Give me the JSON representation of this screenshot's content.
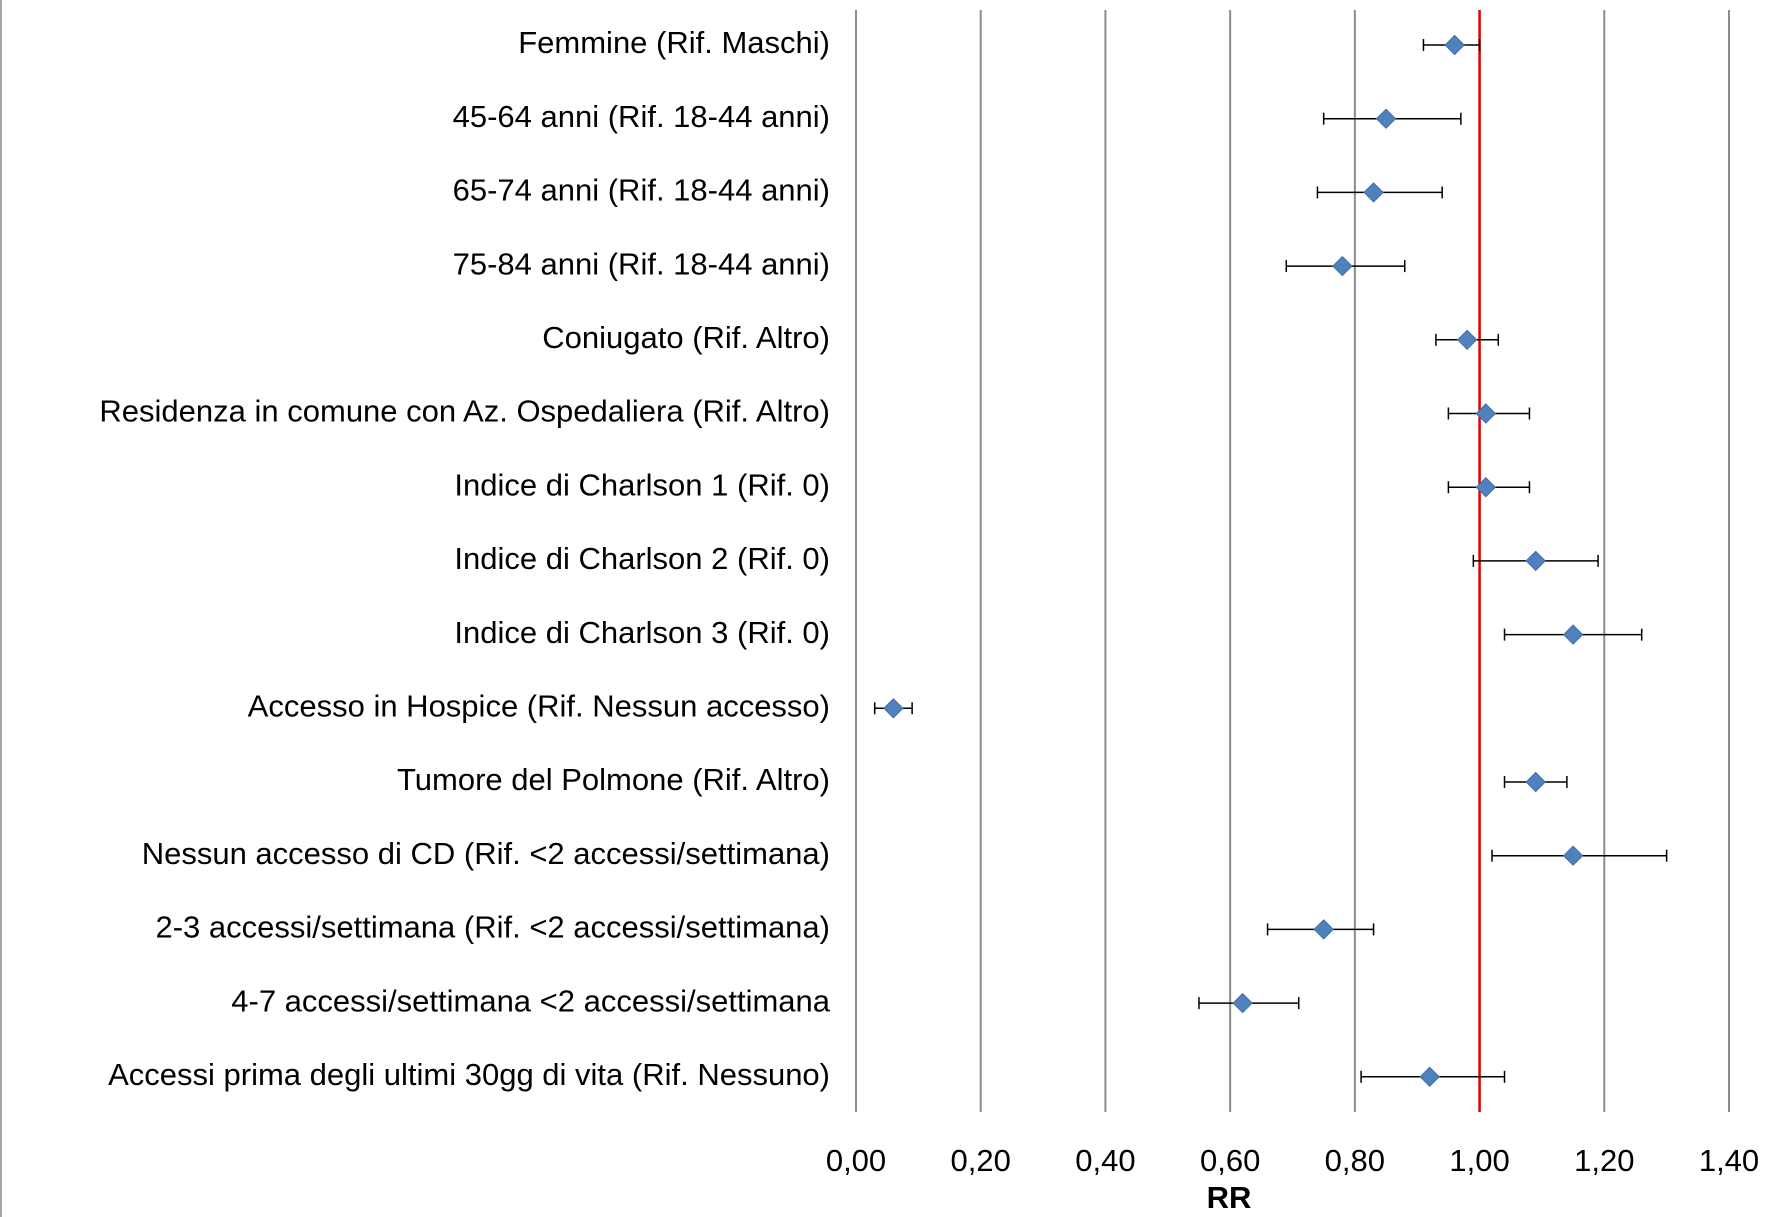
{
  "chart_data": {
    "type": "forest",
    "categories": [
      "Femmine (Rif. Maschi)",
      "45-64 anni (Rif. 18-44 anni)",
      "65-74 anni (Rif. 18-44 anni)",
      "75-84 anni (Rif. 18-44 anni)",
      "Coniugato (Rif. Altro)",
      "Residenza in comune con Az. Ospedaliera (Rif. Altro)",
      "Indice di Charlson 1 (Rif. 0)",
      "Indice di Charlson 2 (Rif. 0)",
      "Indice di Charlson 3 (Rif. 0)",
      "Accesso in Hospice (Rif. Nessun accesso)",
      "Tumore del Polmone (Rif. Altro)",
      "Nessun accesso di CD (Rif. <2 accessi/settimana)",
      "2-3 accessi/settimana (Rif. <2 accessi/settimana)",
      "4-7 accessi/settimana <2 accessi/settimana",
      "Accessi prima degli ultimi 30gg di vita (Rif. Nessuno)"
    ],
    "values": [
      0.96,
      0.85,
      0.83,
      0.78,
      0.98,
      1.01,
      1.01,
      1.09,
      1.15,
      0.06,
      1.09,
      1.15,
      0.75,
      0.62,
      0.92
    ],
    "ci_low": [
      0.91,
      0.75,
      0.74,
      0.69,
      0.93,
      0.95,
      0.95,
      0.99,
      1.04,
      0.03,
      1.04,
      1.02,
      0.66,
      0.55,
      0.81
    ],
    "ci_high": [
      1.0,
      0.97,
      0.94,
      0.88,
      1.03,
      1.08,
      1.08,
      1.19,
      1.26,
      0.09,
      1.14,
      1.3,
      0.83,
      0.71,
      1.04
    ],
    "color": "#4f81bd",
    "xlabel": "RR",
    "xlim": [
      0,
      1.4
    ],
    "xticks": [
      {
        "value": 0,
        "label": "0,00"
      },
      {
        "value": 0.2,
        "label": "0,20"
      },
      {
        "value": 0.4,
        "label": "0,40"
      },
      {
        "value": 0.6,
        "label": "0,60"
      },
      {
        "value": 0.8,
        "label": "0,80"
      },
      {
        "value": 1,
        "label": "1,00"
      },
      {
        "value": 1.2,
        "label": "1,20"
      },
      {
        "value": 1.4,
        "label": "1,40"
      }
    ],
    "reference_line": 1,
    "reference_color": "#e00000",
    "grid": true
  }
}
